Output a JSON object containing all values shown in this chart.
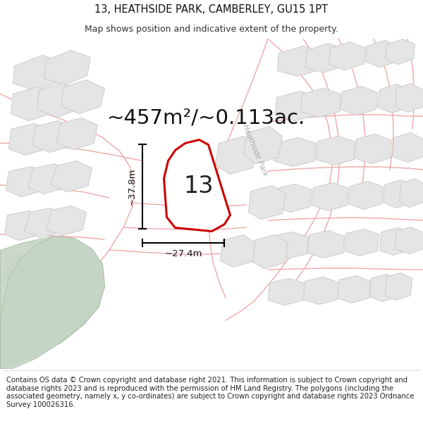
{
  "title": "13, HEATHSIDE PARK, CAMBERLEY, GU15 1PT",
  "subtitle": "Map shows position and indicative extent of the property.",
  "area_text": "~457m²/~0.113ac.",
  "number_label": "13",
  "dim_width": "~27.4m",
  "dim_height": "~37.8m",
  "road_label": "Heathside Park",
  "footer": "Contains OS data © Crown copyright and database right 2021. This information is subject to Crown copyright and database rights 2023 and is reproduced with the permission of HM Land Registry. The polygons (including the associated geometry, namely x, y co-ordinates) are subject to Crown copyright and database rights 2023 Ordnance Survey 100026316.",
  "map_bg": "#f2f2f2",
  "plot_edge_color": "#cc0000",
  "road_color": "#f0a8a8",
  "green_color": "#c5d5c5",
  "block_color": "#e5e5e5",
  "block_edge": "#cccccc",
  "title_fontsize": 10.5,
  "subtitle_fontsize": 9,
  "area_fontsize": 21,
  "number_fontsize": 24,
  "footer_fontsize": 7.2
}
